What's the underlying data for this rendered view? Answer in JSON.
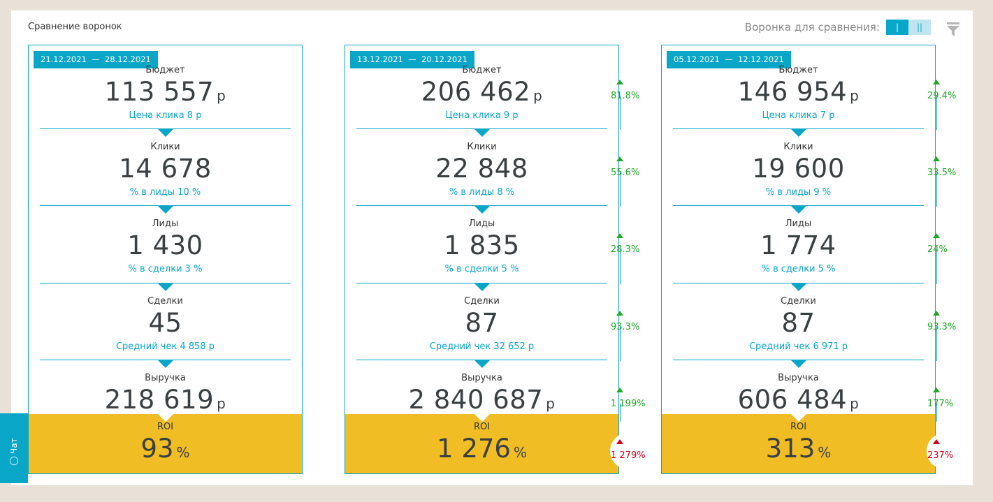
{
  "header": {
    "title": "Сравнение воронок",
    "compare_label": "Воронка для сравнения:",
    "toggle": [
      "|",
      "||"
    ]
  },
  "chat": {
    "label": "Чат"
  },
  "colors": {
    "accent": "#0aa6c8",
    "roi": "#f0bd24",
    "up": "#1fa824",
    "down": "#d0021b"
  },
  "funnels": [
    {
      "date_from": "21.12.2021",
      "date_to": "28.12.2021",
      "stages": [
        {
          "label": "Бюджет",
          "value": "113 557",
          "unit": "р",
          "sub": "Цена клика 8 р"
        },
        {
          "label": "Клики",
          "value": "14 678",
          "unit": "",
          "sub": "% в лиды 10 %"
        },
        {
          "label": "Лиды",
          "value": "1 430",
          "unit": "",
          "sub": "% в сделки 3 %"
        },
        {
          "label": "Сделки",
          "value": "45",
          "unit": "",
          "sub": "Средний чек 4 858 р"
        },
        {
          "label": "Выручка",
          "value": "218 619",
          "unit": "р",
          "sub": ""
        }
      ],
      "roi": {
        "label": "ROI",
        "value": "93",
        "unit": "%"
      }
    },
    {
      "date_from": "13.12.2021",
      "date_to": "20.12.2021",
      "stages": [
        {
          "label": "Бюджет",
          "value": "206 462",
          "unit": "р",
          "sub": "Цена клика 9 р"
        },
        {
          "label": "Клики",
          "value": "22 848",
          "unit": "",
          "sub": "% в лиды 8 %"
        },
        {
          "label": "Лиды",
          "value": "1 835",
          "unit": "",
          "sub": "% в сделки 5 %"
        },
        {
          "label": "Сделки",
          "value": "87",
          "unit": "",
          "sub": "Средний чек 32 652 р"
        },
        {
          "label": "Выручка",
          "value": "2 840 687",
          "unit": "р",
          "sub": ""
        }
      ],
      "roi": {
        "label": "ROI",
        "value": "1 276",
        "unit": "%"
      },
      "diffs": [
        {
          "value": "81.8%",
          "trend": "up"
        },
        {
          "value": "55.6%",
          "trend": "up"
        },
        {
          "value": "28.3%",
          "trend": "up"
        },
        {
          "value": "93.3%",
          "trend": "up"
        },
        {
          "value": "1 199%",
          "trend": "up"
        },
        {
          "value": "1 279%",
          "trend": "up-red"
        }
      ]
    },
    {
      "date_from": "05.12.2021",
      "date_to": "12.12.2021",
      "stages": [
        {
          "label": "Бюджет",
          "value": "146 954",
          "unit": "р",
          "sub": "Цена клика 7 р"
        },
        {
          "label": "Клики",
          "value": "19 600",
          "unit": "",
          "sub": "% в лиды 9 %"
        },
        {
          "label": "Лиды",
          "value": "1 774",
          "unit": "",
          "sub": "% в сделки 5 %"
        },
        {
          "label": "Сделки",
          "value": "87",
          "unit": "",
          "sub": "Средний чек 6 971 р"
        },
        {
          "label": "Выручка",
          "value": "606 484",
          "unit": "р",
          "sub": ""
        }
      ],
      "roi": {
        "label": "ROI",
        "value": "313",
        "unit": "%"
      },
      "diffs": [
        {
          "value": "29.4%",
          "trend": "up"
        },
        {
          "value": "33.5%",
          "trend": "up"
        },
        {
          "value": "24%",
          "trend": "up"
        },
        {
          "value": "93.3%",
          "trend": "up"
        },
        {
          "value": "177%",
          "trend": "up"
        },
        {
          "value": "237%",
          "trend": "up-red"
        }
      ]
    }
  ]
}
